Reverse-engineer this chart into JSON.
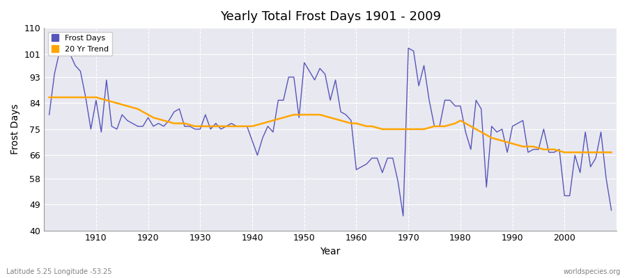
{
  "title": "Yearly Total Frost Days 1901 - 2009",
  "xlabel": "Year",
  "ylabel": "Frost Days",
  "footnote_left": "Latitude 5.25 Longitude -53.25",
  "footnote_right": "worldspecies.org",
  "ylim": [
    40,
    110
  ],
  "yticks": [
    40,
    49,
    58,
    66,
    75,
    84,
    93,
    101,
    110
  ],
  "xticks": [
    1910,
    1920,
    1930,
    1940,
    1950,
    1960,
    1970,
    1980,
    1990,
    2000
  ],
  "line_color": "#5555bb",
  "trend_color": "#FFA500",
  "bg_color": "#e8e8f0",
  "frost_days": {
    "1901": 80,
    "1902": 94,
    "1903": 102,
    "1904": 102,
    "1905": 101,
    "1906": 97,
    "1907": 95,
    "1908": 86,
    "1909": 75,
    "1910": 85,
    "1911": 74,
    "1912": 92,
    "1913": 76,
    "1914": 75,
    "1915": 80,
    "1916": 78,
    "1917": 77,
    "1918": 76,
    "1919": 76,
    "1920": 79,
    "1921": 76,
    "1922": 77,
    "1923": 76,
    "1924": 78,
    "1925": 81,
    "1926": 82,
    "1927": 76,
    "1928": 76,
    "1929": 75,
    "1930": 75,
    "1931": 80,
    "1932": 75,
    "1933": 77,
    "1934": 75,
    "1935": 76,
    "1936": 77,
    "1937": 76,
    "1938": 76,
    "1939": 76,
    "1940": 71,
    "1941": 66,
    "1942": 72,
    "1943": 76,
    "1944": 74,
    "1945": 85,
    "1946": 85,
    "1947": 93,
    "1948": 93,
    "1949": 79,
    "1950": 98,
    "1951": 95,
    "1952": 92,
    "1953": 96,
    "1954": 94,
    "1955": 85,
    "1956": 92,
    "1957": 81,
    "1958": 80,
    "1959": 78,
    "1960": 61,
    "1961": 62,
    "1962": 63,
    "1963": 65,
    "1964": 65,
    "1965": 60,
    "1966": 65,
    "1967": 65,
    "1968": 57,
    "1969": 45,
    "1970": 103,
    "1971": 102,
    "1972": 90,
    "1973": 97,
    "1974": 85,
    "1975": 76,
    "1976": 76,
    "1977": 85,
    "1978": 85,
    "1979": 83,
    "1980": 83,
    "1981": 74,
    "1982": 68,
    "1983": 85,
    "1984": 82,
    "1985": 55,
    "1986": 76,
    "1987": 74,
    "1988": 75,
    "1989": 67,
    "1990": 76,
    "1991": 77,
    "1992": 78,
    "1993": 67,
    "1994": 68,
    "1995": 68,
    "1996": 75,
    "1997": 67,
    "1998": 67,
    "1999": 68,
    "2000": 52,
    "2001": 52,
    "2002": 66,
    "2003": 60,
    "2004": 74,
    "2005": 62,
    "2006": 65,
    "2007": 74,
    "2008": 58,
    "2009": 47
  },
  "trend_days": {
    "1901": 86,
    "1902": 86,
    "1903": 86,
    "1904": 86,
    "1905": 86,
    "1906": 86,
    "1907": 86,
    "1908": 86,
    "1909": 86,
    "1910": 86,
    "1911": 85.5,
    "1912": 85,
    "1913": 84.5,
    "1914": 84,
    "1915": 83.5,
    "1916": 83,
    "1917": 82.5,
    "1918": 82,
    "1919": 81,
    "1920": 80,
    "1921": 79,
    "1922": 78.5,
    "1923": 78,
    "1924": 77.5,
    "1925": 77,
    "1926": 77,
    "1927": 77,
    "1928": 76.5,
    "1929": 76,
    "1930": 76,
    "1931": 76,
    "1932": 76,
    "1933": 76,
    "1934": 76,
    "1935": 76,
    "1936": 76,
    "1937": 76,
    "1938": 76,
    "1939": 76,
    "1940": 76,
    "1941": 76.5,
    "1942": 77,
    "1943": 77.5,
    "1944": 78,
    "1945": 78.5,
    "1946": 79,
    "1947": 79.5,
    "1948": 80,
    "1949": 80,
    "1950": 80,
    "1951": 80,
    "1952": 80,
    "1953": 80,
    "1954": 79.5,
    "1955": 79,
    "1956": 78.5,
    "1957": 78,
    "1958": 77.5,
    "1959": 77,
    "1960": 77,
    "1961": 76.5,
    "1962": 76,
    "1963": 76,
    "1964": 75.5,
    "1965": 75,
    "1966": 75,
    "1967": 75,
    "1968": 75,
    "1969": 75,
    "1970": 75,
    "1971": 75,
    "1972": 75,
    "1973": 75,
    "1974": 75.5,
    "1975": 76,
    "1976": 76,
    "1977": 76,
    "1978": 76.5,
    "1979": 77,
    "1980": 78,
    "1981": 77,
    "1982": 76,
    "1983": 75,
    "1984": 74,
    "1985": 73,
    "1986": 72,
    "1987": 71.5,
    "1988": 71,
    "1989": 70.5,
    "1990": 70,
    "1991": 69.5,
    "1992": 69,
    "1993": 69,
    "1994": 69,
    "1995": 68.5,
    "1996": 68,
    "1997": 68,
    "1998": 68,
    "1999": 67.5,
    "2000": 67,
    "2001": 67,
    "2002": 67,
    "2003": 67,
    "2004": 67,
    "2005": 67,
    "2006": 67,
    "2007": 67,
    "2008": 67,
    "2009": 67
  }
}
